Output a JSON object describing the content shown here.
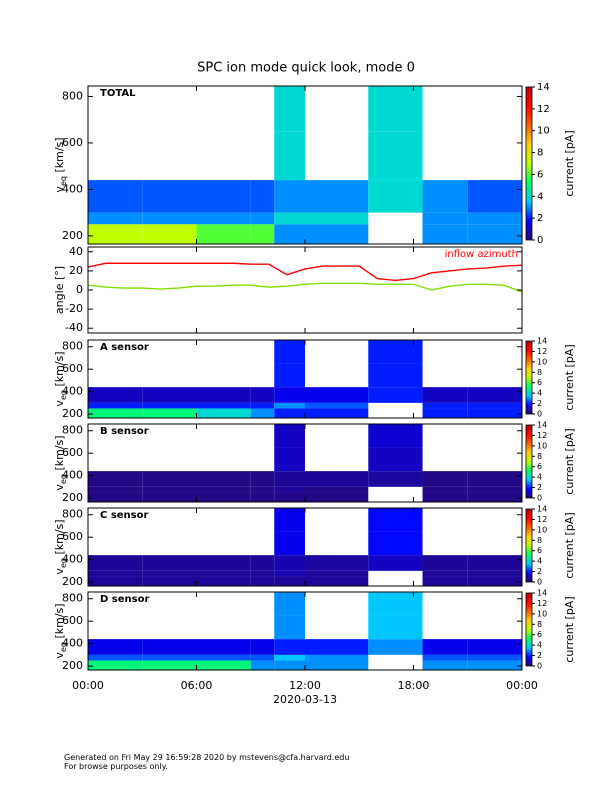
{
  "title": "SPC ion mode quick look, mode 0",
  "xlabel": "2020-03-13",
  "xlim": [
    0,
    24
  ],
  "xticks": [
    {
      "value": 0,
      "label": "00:00"
    },
    {
      "value": 6,
      "label": "06:00"
    },
    {
      "value": 12,
      "label": "12:00"
    },
    {
      "value": 18,
      "label": "18:00"
    },
    {
      "value": 24,
      "label": "00:00"
    }
  ],
  "footer": [
    "Generated on Fri May 29 16:59:28 2020 by mstevens@cfa.harvard.edu",
    "For browse purposes only."
  ],
  "colormap": [
    "#2a0a6e",
    "#0000ff",
    "#00c8ff",
    "#00ff60",
    "#c0ff00",
    "#ffd000",
    "#ff6000",
    "#ff0000",
    "#c00000"
  ],
  "chart_data": [
    {
      "type": "heatmap",
      "panel_label": "TOTAL",
      "ylabel": {
        "main": "v",
        "sub": "eq",
        "unit": " [km/s]"
      },
      "ylim": [
        165,
        845
      ],
      "yticks": [
        200,
        400,
        600,
        800
      ],
      "x_edges": [
        0,
        3,
        6,
        9,
        10.3,
        12,
        15.5,
        18.5,
        21,
        24
      ],
      "y_edges": [
        165,
        250,
        300,
        440,
        650,
        845
      ],
      "z": [
        [
          7,
          7,
          6,
          6,
          3,
          3,
          null,
          3,
          3
        ],
        [
          3,
          3,
          3,
          3,
          4,
          4,
          null,
          3,
          3
        ],
        [
          2.5,
          2.5,
          2.5,
          2.5,
          3,
          3,
          4,
          3,
          2.5
        ],
        [
          null,
          null,
          null,
          null,
          4,
          null,
          4,
          null,
          null
        ],
        [
          null,
          null,
          null,
          null,
          4,
          null,
          4,
          null,
          null
        ]
      ],
      "clim": [
        0,
        14
      ],
      "cticks": [
        0,
        2,
        4,
        6,
        8,
        10,
        12,
        14
      ],
      "clabel": "current [pA]"
    },
    {
      "type": "line",
      "ylabel": "angle [°]",
      "annotation": "inflow azimuth",
      "ylim": [
        -45,
        45
      ],
      "yticks": [
        -40,
        -20,
        0,
        20,
        40
      ],
      "x": [
        0,
        1,
        2,
        3,
        4,
        5,
        6,
        7,
        8,
        9,
        10,
        11,
        12,
        13,
        14,
        15,
        16,
        17,
        18,
        19,
        20,
        21,
        22,
        23,
        24
      ],
      "series": [
        {
          "color": "#ff0000",
          "values": [
            24,
            28,
            28,
            28,
            28,
            28,
            28,
            28,
            28,
            27,
            27,
            16,
            22,
            25,
            25,
            25,
            12,
            10,
            12,
            18,
            20,
            22,
            23,
            25,
            26
          ]
        },
        {
          "color": "#80e000",
          "values": [
            5,
            3,
            2,
            2,
            1,
            2,
            4,
            4,
            5,
            5,
            3,
            4,
            6,
            7,
            7,
            7,
            6,
            6,
            6,
            0,
            4,
            6,
            6,
            5,
            -2
          ]
        }
      ]
    },
    {
      "type": "heatmap",
      "panel_label": "A sensor",
      "ylabel": {
        "main": "v",
        "sub": "eq",
        "unit": " [km/s]"
      },
      "ylim": [
        165,
        860
      ],
      "yticks": [
        200,
        400,
        600,
        800
      ],
      "x_edges": [
        0,
        3,
        6,
        9,
        10.3,
        12,
        15.5,
        18.5,
        21,
        24
      ],
      "y_edges": [
        165,
        250,
        300,
        440,
        650,
        860
      ],
      "z": [
        [
          5,
          5,
          4,
          3,
          2,
          2,
          null,
          2,
          2
        ],
        [
          2,
          2,
          2,
          2,
          3,
          2.5,
          null,
          2,
          2
        ],
        [
          1,
          1,
          1,
          1,
          1.5,
          1.5,
          2,
          1,
          1
        ],
        [
          null,
          null,
          null,
          null,
          2,
          null,
          2,
          null,
          null
        ],
        [
          null,
          null,
          null,
          null,
          2,
          null,
          2,
          null,
          null
        ]
      ],
      "clim": [
        0,
        14
      ],
      "cticks": [
        0,
        2,
        4,
        6,
        8,
        10,
        12,
        14
      ],
      "clabel": "current [pA]"
    },
    {
      "type": "heatmap",
      "panel_label": "B sensor",
      "ylabel": {
        "main": "v",
        "sub": "eq",
        "unit": " [km/s]"
      },
      "ylim": [
        165,
        860
      ],
      "yticks": [
        200,
        400,
        600,
        800
      ],
      "x_edges": [
        0,
        3,
        6,
        9,
        10.3,
        12,
        15.5,
        18.5,
        21,
        24
      ],
      "y_edges": [
        165,
        250,
        300,
        440,
        650,
        860
      ],
      "z": [
        [
          0.3,
          0.3,
          0.3,
          0.3,
          0.3,
          0.3,
          null,
          0.3,
          0.3
        ],
        [
          0.3,
          0.3,
          0.3,
          0.3,
          0.5,
          0.3,
          null,
          0.3,
          0.3
        ],
        [
          0.3,
          0.3,
          0.3,
          0.3,
          0.5,
          0.5,
          0.6,
          0.3,
          0.3
        ],
        [
          null,
          null,
          null,
          null,
          1,
          null,
          1,
          null,
          null
        ],
        [
          null,
          null,
          null,
          null,
          1,
          null,
          1.2,
          null,
          null
        ]
      ],
      "clim": [
        0,
        14
      ],
      "cticks": [
        0,
        2,
        4,
        6,
        8,
        10,
        12,
        14
      ],
      "clabel": "current [pA]"
    },
    {
      "type": "heatmap",
      "panel_label": "C sensor",
      "ylabel": {
        "main": "v",
        "sub": "eq",
        "unit": " [km/s]"
      },
      "ylim": [
        165,
        860
      ],
      "yticks": [
        200,
        400,
        600,
        800
      ],
      "x_edges": [
        0,
        3,
        6,
        9,
        10.3,
        12,
        15.5,
        18.5,
        21,
        24
      ],
      "y_edges": [
        165,
        250,
        300,
        440,
        650,
        860
      ],
      "z": [
        [
          0.5,
          0.5,
          0.5,
          0.5,
          0.5,
          0.5,
          null,
          0.5,
          0.5
        ],
        [
          0.5,
          0.5,
          0.5,
          0.5,
          0.8,
          0.5,
          null,
          0.5,
          0.5
        ],
        [
          0.5,
          0.5,
          0.5,
          0.5,
          0.8,
          0.6,
          1,
          0.5,
          0.5
        ],
        [
          null,
          null,
          null,
          null,
          1.5,
          null,
          1.8,
          null,
          null
        ],
        [
          null,
          null,
          null,
          null,
          1.5,
          null,
          1.8,
          null,
          null
        ]
      ],
      "clim": [
        0,
        14
      ],
      "cticks": [
        0,
        2,
        4,
        6,
        8,
        10,
        12,
        14
      ],
      "clabel": "current [pA]"
    },
    {
      "type": "heatmap",
      "panel_label": "D sensor",
      "ylabel": {
        "main": "v",
        "sub": "eq",
        "unit": " [km/s]"
      },
      "ylim": [
        165,
        860
      ],
      "yticks": [
        200,
        400,
        600,
        800
      ],
      "x_edges": [
        0,
        3,
        6,
        9,
        10.3,
        12,
        15.5,
        18.5,
        21,
        24
      ],
      "y_edges": [
        165,
        250,
        300,
        440,
        650,
        860
      ],
      "z": [
        [
          5,
          5,
          5,
          3,
          3,
          3,
          null,
          3,
          3
        ],
        [
          2.5,
          2.5,
          2.5,
          2.5,
          3.5,
          3,
          null,
          2.5,
          2.5
        ],
        [
          1.5,
          1.5,
          1.5,
          1.5,
          2,
          2,
          3,
          1.5,
          1.5
        ],
        [
          null,
          null,
          null,
          null,
          3,
          null,
          3.5,
          null,
          null
        ],
        [
          null,
          null,
          null,
          null,
          3,
          null,
          3.5,
          null,
          null
        ]
      ],
      "clim": [
        0,
        14
      ],
      "cticks": [
        0,
        2,
        4,
        6,
        8,
        10,
        12,
        14
      ],
      "clabel": "current [pA]"
    }
  ]
}
